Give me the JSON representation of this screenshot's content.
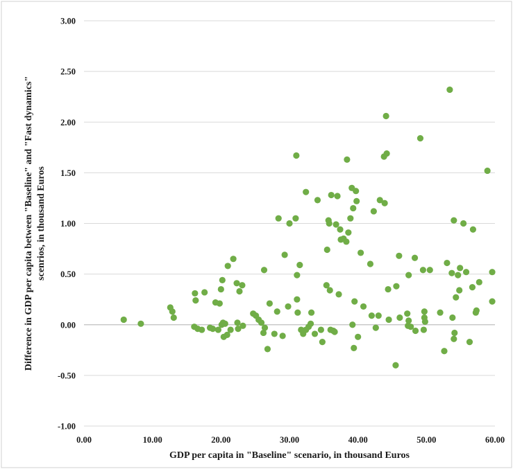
{
  "chart_data": {
    "type": "scatter",
    "title": "",
    "xlabel": "GDP per capita in \"Baseline\" scenario, in thousand Euros",
    "ylabel_lines": [
      "Difference in GDP per capita between \"Baseline\" and \"Fast dynamics\"",
      "scenrios, in thousand Euros"
    ],
    "xlim": [
      0,
      60
    ],
    "ylim": [
      -1,
      3
    ],
    "x_ticks": [
      "0.00",
      "10.00",
      "20.00",
      "30.00",
      "40.00",
      "50.00",
      "60.00"
    ],
    "y_ticks": [
      "-1.00",
      "-0.50",
      "0.00",
      "0.50",
      "1.00",
      "1.50",
      "2.00",
      "2.50",
      "3.00"
    ],
    "grid": "horizontal",
    "marker_color": "#70ad47",
    "points": [
      [
        5.8,
        0.05
      ],
      [
        8.3,
        0.01
      ],
      [
        12.6,
        0.17
      ],
      [
        12.9,
        0.13
      ],
      [
        13.1,
        0.07
      ],
      [
        16.2,
        0.31
      ],
      [
        16.3,
        0.24
      ],
      [
        16.1,
        -0.02
      ],
      [
        16.6,
        -0.04
      ],
      [
        17.2,
        -0.05
      ],
      [
        17.6,
        0.32
      ],
      [
        18.4,
        -0.03
      ],
      [
        18.8,
        -0.04
      ],
      [
        19.2,
        0.22
      ],
      [
        19.6,
        -0.05
      ],
      [
        19.8,
        0.21
      ],
      [
        20.0,
        0.35
      ],
      [
        20.1,
        0.0
      ],
      [
        20.3,
        0.02
      ],
      [
        20.2,
        0.44
      ],
      [
        20.4,
        -0.12
      ],
      [
        20.6,
        0.01
      ],
      [
        20.9,
        -0.1
      ],
      [
        21.0,
        0.58
      ],
      [
        21.4,
        -0.05
      ],
      [
        21.8,
        0.65
      ],
      [
        22.3,
        0.41
      ],
      [
        22.4,
        0.02
      ],
      [
        22.5,
        -0.04
      ],
      [
        22.7,
        0.33
      ],
      [
        23.1,
        0.39
      ],
      [
        23.2,
        -0.01
      ],
      [
        24.7,
        0.11
      ],
      [
        25.1,
        0.09
      ],
      [
        25.5,
        0.05
      ],
      [
        25.9,
        0.02
      ],
      [
        26.2,
        -0.08
      ],
      [
        26.3,
        0.54
      ],
      [
        26.4,
        -0.03
      ],
      [
        26.8,
        -0.24
      ],
      [
        27.1,
        0.21
      ],
      [
        27.8,
        -0.09
      ],
      [
        28.2,
        0.13
      ],
      [
        28.4,
        1.05
      ],
      [
        29.0,
        -0.11
      ],
      [
        29.3,
        0.69
      ],
      [
        29.8,
        0.18
      ],
      [
        30.0,
        1.0
      ],
      [
        31.0,
        1.67
      ],
      [
        30.9,
        1.05
      ],
      [
        31.1,
        0.49
      ],
      [
        31.1,
        0.25
      ],
      [
        31.2,
        0.12
      ],
      [
        31.5,
        0.59
      ],
      [
        31.7,
        -0.05
      ],
      [
        32.0,
        -0.09
      ],
      [
        32.4,
        1.31
      ],
      [
        32.4,
        -0.05
      ],
      [
        32.8,
        -0.02
      ],
      [
        33.1,
        0.01
      ],
      [
        33.2,
        0.12
      ],
      [
        33.7,
        -0.09
      ],
      [
        34.1,
        1.23
      ],
      [
        34.6,
        -0.05
      ],
      [
        34.8,
        -0.17
      ],
      [
        35.4,
        0.39
      ],
      [
        35.5,
        0.74
      ],
      [
        35.7,
        1.03
      ],
      [
        35.8,
        1.0
      ],
      [
        35.9,
        0.34
      ],
      [
        36.0,
        -0.05
      ],
      [
        36.1,
        1.28
      ],
      [
        36.4,
        -0.06
      ],
      [
        36.6,
        -0.07
      ],
      [
        36.8,
        0.99
      ],
      [
        37.0,
        1.27
      ],
      [
        37.2,
        0.3
      ],
      [
        37.4,
        0.94
      ],
      [
        37.5,
        0.84
      ],
      [
        37.9,
        0.85
      ],
      [
        38.3,
        0.82
      ],
      [
        38.4,
        1.63
      ],
      [
        38.6,
        0.91
      ],
      [
        38.9,
        1.05
      ],
      [
        39.1,
        1.35
      ],
      [
        39.2,
        0.0
      ],
      [
        39.3,
        1.15
      ],
      [
        39.4,
        -0.23
      ],
      [
        39.5,
        0.23
      ],
      [
        39.7,
        1.32
      ],
      [
        39.8,
        1.22
      ],
      [
        40.0,
        -0.12
      ],
      [
        40.4,
        0.71
      ],
      [
        40.8,
        0.18
      ],
      [
        41.8,
        0.6
      ],
      [
        42.0,
        0.09
      ],
      [
        42.3,
        1.12
      ],
      [
        42.6,
        -0.03
      ],
      [
        43.0,
        0.09
      ],
      [
        43.2,
        1.23
      ],
      [
        43.8,
        1.66
      ],
      [
        43.9,
        1.2
      ],
      [
        44.2,
        1.69
      ],
      [
        44.1,
        2.06
      ],
      [
        44.4,
        0.35
      ],
      [
        44.5,
        0.05
      ],
      [
        45.6,
        0.38
      ],
      [
        45.5,
        -0.4
      ],
      [
        46.0,
        0.68
      ],
      [
        46.1,
        0.07
      ],
      [
        47.2,
        0.11
      ],
      [
        47.4,
        0.04
      ],
      [
        47.3,
        -0.01
      ],
      [
        47.4,
        0.49
      ],
      [
        47.7,
        -0.02
      ],
      [
        48.3,
        0.66
      ],
      [
        48.4,
        -0.06
      ],
      [
        49.1,
        1.84
      ],
      [
        49.5,
        0.54
      ],
      [
        49.7,
        0.13
      ],
      [
        49.7,
        0.07
      ],
      [
        49.6,
        -0.05
      ],
      [
        49.8,
        0.03
      ],
      [
        50.5,
        0.54
      ],
      [
        52.0,
        0.12
      ],
      [
        52.6,
        -0.26
      ],
      [
        53.0,
        0.61
      ],
      [
        53.4,
        2.32
      ],
      [
        53.7,
        0.51
      ],
      [
        53.8,
        0.07
      ],
      [
        54.0,
        1.03
      ],
      [
        54.1,
        -0.08
      ],
      [
        54.0,
        -0.14
      ],
      [
        54.3,
        0.27
      ],
      [
        54.6,
        0.49
      ],
      [
        54.8,
        0.34
      ],
      [
        54.9,
        0.56
      ],
      [
        55.4,
        1.0
      ],
      [
        55.8,
        0.52
      ],
      [
        56.3,
        -0.17
      ],
      [
        56.7,
        0.37
      ],
      [
        56.8,
        0.94
      ],
      [
        57.3,
        0.14
      ],
      [
        57.2,
        0.12
      ],
      [
        57.7,
        0.42
      ],
      [
        58.9,
        1.52
      ],
      [
        59.6,
        0.52
      ],
      [
        59.6,
        0.23
      ]
    ]
  }
}
